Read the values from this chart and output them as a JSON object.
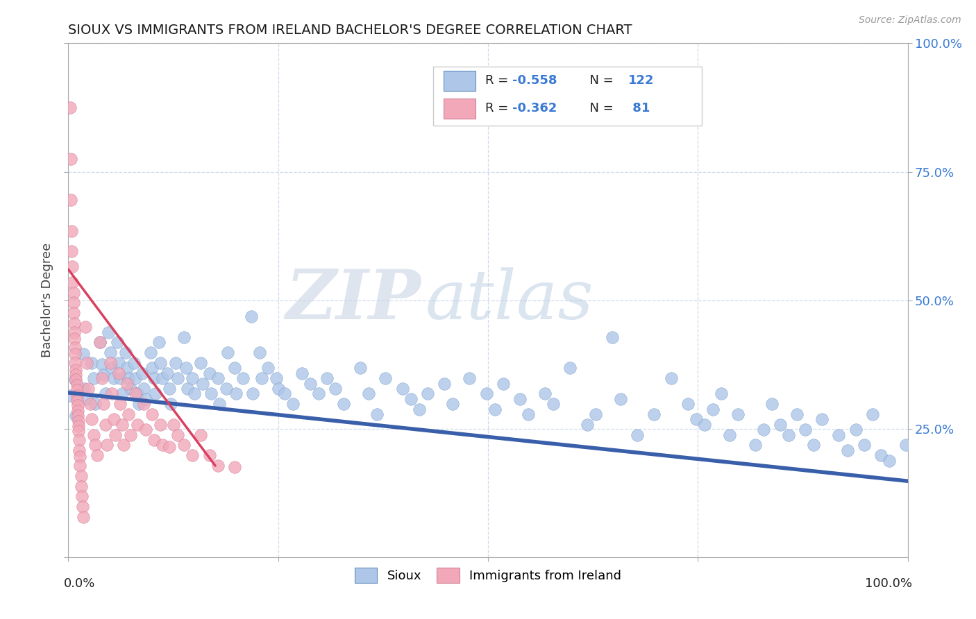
{
  "title": "SIOUX VS IMMIGRANTS FROM IRELAND BACHELOR'S DEGREE CORRELATION CHART",
  "source": "Source: ZipAtlas.com",
  "ylabel": "Bachelor's Degree",
  "watermark_zip": "ZIP",
  "watermark_atlas": "atlas",
  "blue_color": "#aec6e8",
  "pink_color": "#f2a8b8",
  "trendline_blue_color": "#3a5faa",
  "trendline_pink_color": "#d94060",
  "blue_scatter": [
    [
      0.002,
      0.315
    ],
    [
      0.008,
      0.345
    ],
    [
      0.009,
      0.275
    ],
    [
      0.018,
      0.395
    ],
    [
      0.019,
      0.328
    ],
    [
      0.022,
      0.308
    ],
    [
      0.028,
      0.378
    ],
    [
      0.03,
      0.348
    ],
    [
      0.032,
      0.298
    ],
    [
      0.038,
      0.418
    ],
    [
      0.04,
      0.375
    ],
    [
      0.042,
      0.355
    ],
    [
      0.044,
      0.318
    ],
    [
      0.048,
      0.438
    ],
    [
      0.05,
      0.398
    ],
    [
      0.052,
      0.368
    ],
    [
      0.054,
      0.348
    ],
    [
      0.058,
      0.418
    ],
    [
      0.06,
      0.378
    ],
    [
      0.062,
      0.348
    ],
    [
      0.064,
      0.318
    ],
    [
      0.068,
      0.398
    ],
    [
      0.07,
      0.368
    ],
    [
      0.072,
      0.348
    ],
    [
      0.074,
      0.328
    ],
    [
      0.078,
      0.378
    ],
    [
      0.08,
      0.348
    ],
    [
      0.082,
      0.318
    ],
    [
      0.084,
      0.298
    ],
    [
      0.088,
      0.358
    ],
    [
      0.09,
      0.328
    ],
    [
      0.092,
      0.308
    ],
    [
      0.098,
      0.398
    ],
    [
      0.1,
      0.368
    ],
    [
      0.102,
      0.348
    ],
    [
      0.104,
      0.318
    ],
    [
      0.108,
      0.418
    ],
    [
      0.11,
      0.378
    ],
    [
      0.112,
      0.348
    ],
    [
      0.118,
      0.358
    ],
    [
      0.12,
      0.328
    ],
    [
      0.122,
      0.298
    ],
    [
      0.128,
      0.378
    ],
    [
      0.13,
      0.348
    ],
    [
      0.138,
      0.428
    ],
    [
      0.14,
      0.368
    ],
    [
      0.142,
      0.328
    ],
    [
      0.148,
      0.348
    ],
    [
      0.15,
      0.318
    ],
    [
      0.158,
      0.378
    ],
    [
      0.16,
      0.338
    ],
    [
      0.168,
      0.358
    ],
    [
      0.17,
      0.318
    ],
    [
      0.178,
      0.348
    ],
    [
      0.18,
      0.298
    ],
    [
      0.188,
      0.328
    ],
    [
      0.19,
      0.398
    ],
    [
      0.198,
      0.368
    ],
    [
      0.2,
      0.318
    ],
    [
      0.208,
      0.348
    ],
    [
      0.218,
      0.468
    ],
    [
      0.22,
      0.318
    ],
    [
      0.228,
      0.398
    ],
    [
      0.23,
      0.348
    ],
    [
      0.238,
      0.368
    ],
    [
      0.248,
      0.348
    ],
    [
      0.25,
      0.328
    ],
    [
      0.258,
      0.318
    ],
    [
      0.268,
      0.298
    ],
    [
      0.278,
      0.358
    ],
    [
      0.288,
      0.338
    ],
    [
      0.298,
      0.318
    ],
    [
      0.308,
      0.348
    ],
    [
      0.318,
      0.328
    ],
    [
      0.328,
      0.298
    ],
    [
      0.348,
      0.368
    ],
    [
      0.358,
      0.318
    ],
    [
      0.368,
      0.278
    ],
    [
      0.378,
      0.348
    ],
    [
      0.398,
      0.328
    ],
    [
      0.408,
      0.308
    ],
    [
      0.418,
      0.288
    ],
    [
      0.428,
      0.318
    ],
    [
      0.448,
      0.338
    ],
    [
      0.458,
      0.298
    ],
    [
      0.478,
      0.348
    ],
    [
      0.498,
      0.318
    ],
    [
      0.508,
      0.288
    ],
    [
      0.518,
      0.338
    ],
    [
      0.538,
      0.308
    ],
    [
      0.548,
      0.278
    ],
    [
      0.568,
      0.318
    ],
    [
      0.578,
      0.298
    ],
    [
      0.598,
      0.368
    ],
    [
      0.618,
      0.258
    ],
    [
      0.628,
      0.278
    ],
    [
      0.648,
      0.428
    ],
    [
      0.658,
      0.308
    ],
    [
      0.678,
      0.238
    ],
    [
      0.698,
      0.278
    ],
    [
      0.718,
      0.348
    ],
    [
      0.738,
      0.298
    ],
    [
      0.748,
      0.268
    ],
    [
      0.758,
      0.258
    ],
    [
      0.768,
      0.288
    ],
    [
      0.778,
      0.318
    ],
    [
      0.788,
      0.238
    ],
    [
      0.798,
      0.278
    ],
    [
      0.818,
      0.218
    ],
    [
      0.828,
      0.248
    ],
    [
      0.838,
      0.298
    ],
    [
      0.848,
      0.258
    ],
    [
      0.858,
      0.238
    ],
    [
      0.868,
      0.278
    ],
    [
      0.878,
      0.248
    ],
    [
      0.888,
      0.218
    ],
    [
      0.898,
      0.268
    ],
    [
      0.918,
      0.238
    ],
    [
      0.928,
      0.208
    ],
    [
      0.938,
      0.248
    ],
    [
      0.948,
      0.218
    ],
    [
      0.958,
      0.278
    ],
    [
      0.968,
      0.198
    ],
    [
      0.978,
      0.188
    ],
    [
      0.998,
      0.218
    ]
  ],
  "pink_scatter": [
    [
      0.002,
      0.875
    ],
    [
      0.003,
      0.775
    ],
    [
      0.003,
      0.695
    ],
    [
      0.004,
      0.635
    ],
    [
      0.004,
      0.595
    ],
    [
      0.005,
      0.565
    ],
    [
      0.005,
      0.535
    ],
    [
      0.006,
      0.515
    ],
    [
      0.006,
      0.495
    ],
    [
      0.006,
      0.475
    ],
    [
      0.007,
      0.455
    ],
    [
      0.007,
      0.438
    ],
    [
      0.007,
      0.425
    ],
    [
      0.008,
      0.408
    ],
    [
      0.008,
      0.395
    ],
    [
      0.008,
      0.378
    ],
    [
      0.009,
      0.365
    ],
    [
      0.009,
      0.355
    ],
    [
      0.009,
      0.345
    ],
    [
      0.01,
      0.335
    ],
    [
      0.01,
      0.325
    ],
    [
      0.01,
      0.315
    ],
    [
      0.01,
      0.305
    ],
    [
      0.011,
      0.295
    ],
    [
      0.011,
      0.285
    ],
    [
      0.011,
      0.275
    ],
    [
      0.012,
      0.265
    ],
    [
      0.012,
      0.255
    ],
    [
      0.012,
      0.245
    ],
    [
      0.013,
      0.228
    ],
    [
      0.013,
      0.208
    ],
    [
      0.014,
      0.195
    ],
    [
      0.014,
      0.178
    ],
    [
      0.015,
      0.158
    ],
    [
      0.015,
      0.138
    ],
    [
      0.016,
      0.118
    ],
    [
      0.017,
      0.098
    ],
    [
      0.018,
      0.078
    ],
    [
      0.02,
      0.448
    ],
    [
      0.022,
      0.378
    ],
    [
      0.024,
      0.328
    ],
    [
      0.026,
      0.298
    ],
    [
      0.028,
      0.268
    ],
    [
      0.03,
      0.238
    ],
    [
      0.032,
      0.218
    ],
    [
      0.034,
      0.198
    ],
    [
      0.038,
      0.418
    ],
    [
      0.04,
      0.348
    ],
    [
      0.042,
      0.298
    ],
    [
      0.044,
      0.258
    ],
    [
      0.046,
      0.218
    ],
    [
      0.05,
      0.378
    ],
    [
      0.052,
      0.318
    ],
    [
      0.054,
      0.268
    ],
    [
      0.056,
      0.238
    ],
    [
      0.06,
      0.358
    ],
    [
      0.062,
      0.298
    ],
    [
      0.064,
      0.258
    ],
    [
      0.066,
      0.218
    ],
    [
      0.07,
      0.338
    ],
    [
      0.072,
      0.278
    ],
    [
      0.074,
      0.238
    ],
    [
      0.08,
      0.318
    ],
    [
      0.082,
      0.258
    ],
    [
      0.09,
      0.298
    ],
    [
      0.092,
      0.248
    ],
    [
      0.1,
      0.278
    ],
    [
      0.102,
      0.228
    ],
    [
      0.11,
      0.258
    ],
    [
      0.112,
      0.218
    ],
    [
      0.12,
      0.215
    ],
    [
      0.125,
      0.258
    ],
    [
      0.13,
      0.238
    ],
    [
      0.138,
      0.218
    ],
    [
      0.148,
      0.198
    ],
    [
      0.158,
      0.238
    ],
    [
      0.168,
      0.198
    ],
    [
      0.178,
      0.178
    ],
    [
      0.198,
      0.175
    ]
  ],
  "blue_trend_x0": 0.0,
  "blue_trend_x1": 1.0,
  "blue_trend_y0": 0.32,
  "blue_trend_y1": 0.148,
  "pink_trend_x0": 0.0,
  "pink_trend_x1": 0.175,
  "pink_trend_y0": 0.56,
  "pink_trend_y1": 0.178,
  "xlim": [
    0.0,
    1.0
  ],
  "ylim": [
    0.0,
    1.0
  ],
  "right_yticks": [
    0.25,
    0.5,
    0.75,
    1.0
  ],
  "right_yticklabels": [
    "25.0%",
    "50.0%",
    "75.0%",
    "100.0%"
  ],
  "grid_color": "#c8d8ec",
  "legend_r1": "R = ",
  "legend_v1": "-0.558",
  "legend_n1_label": "N = ",
  "legend_n1_val": "122",
  "legend_r2": "R = ",
  "legend_v2": "-0.362",
  "legend_n2_label": "N = ",
  "legend_n2_val": " 81"
}
